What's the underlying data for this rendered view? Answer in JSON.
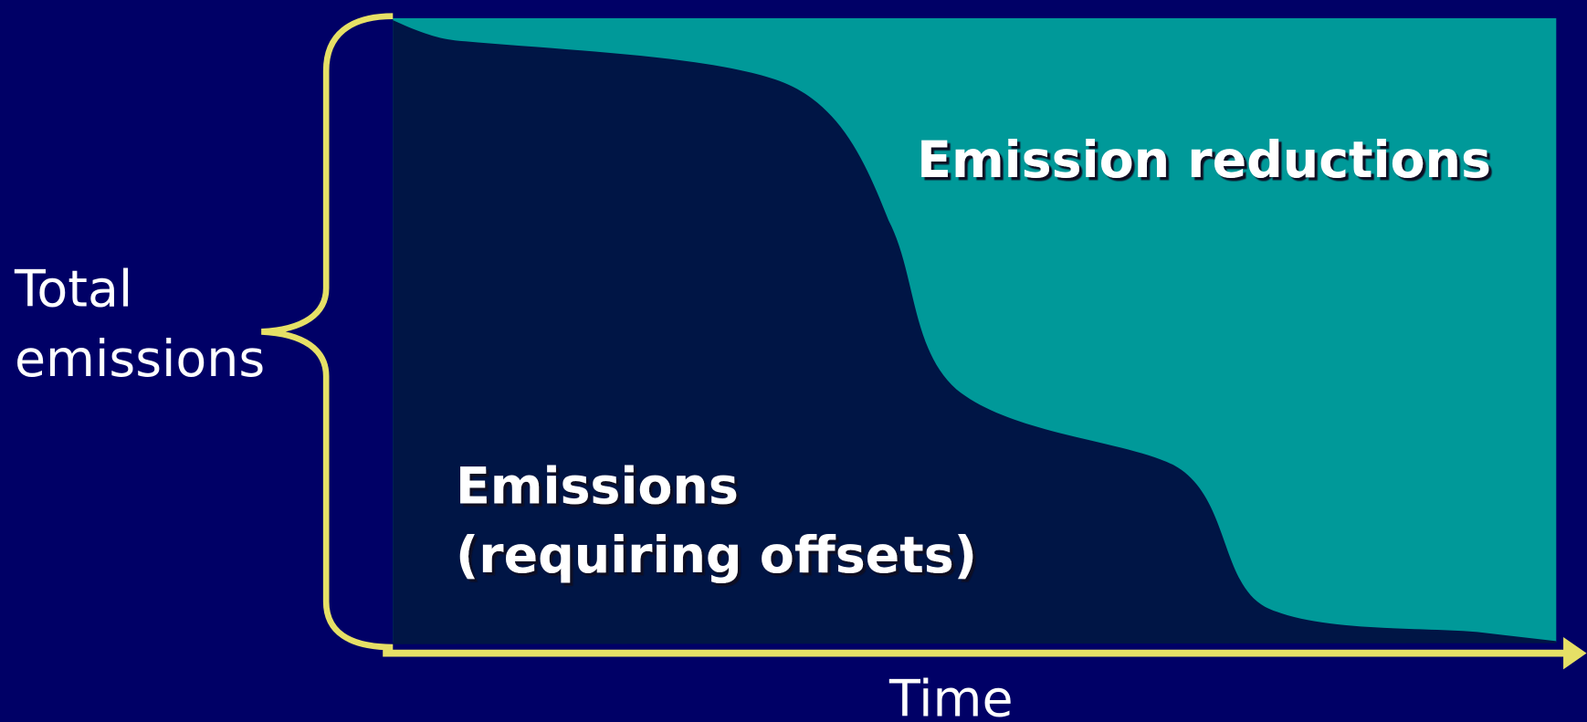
{
  "diagram": {
    "y_label": [
      "Total",
      "emissions"
    ],
    "upper_region_label": "Emission reductions",
    "lower_region_label": [
      "Emissions",
      "(requiring offsets)"
    ],
    "x_label": "Time"
  }
}
